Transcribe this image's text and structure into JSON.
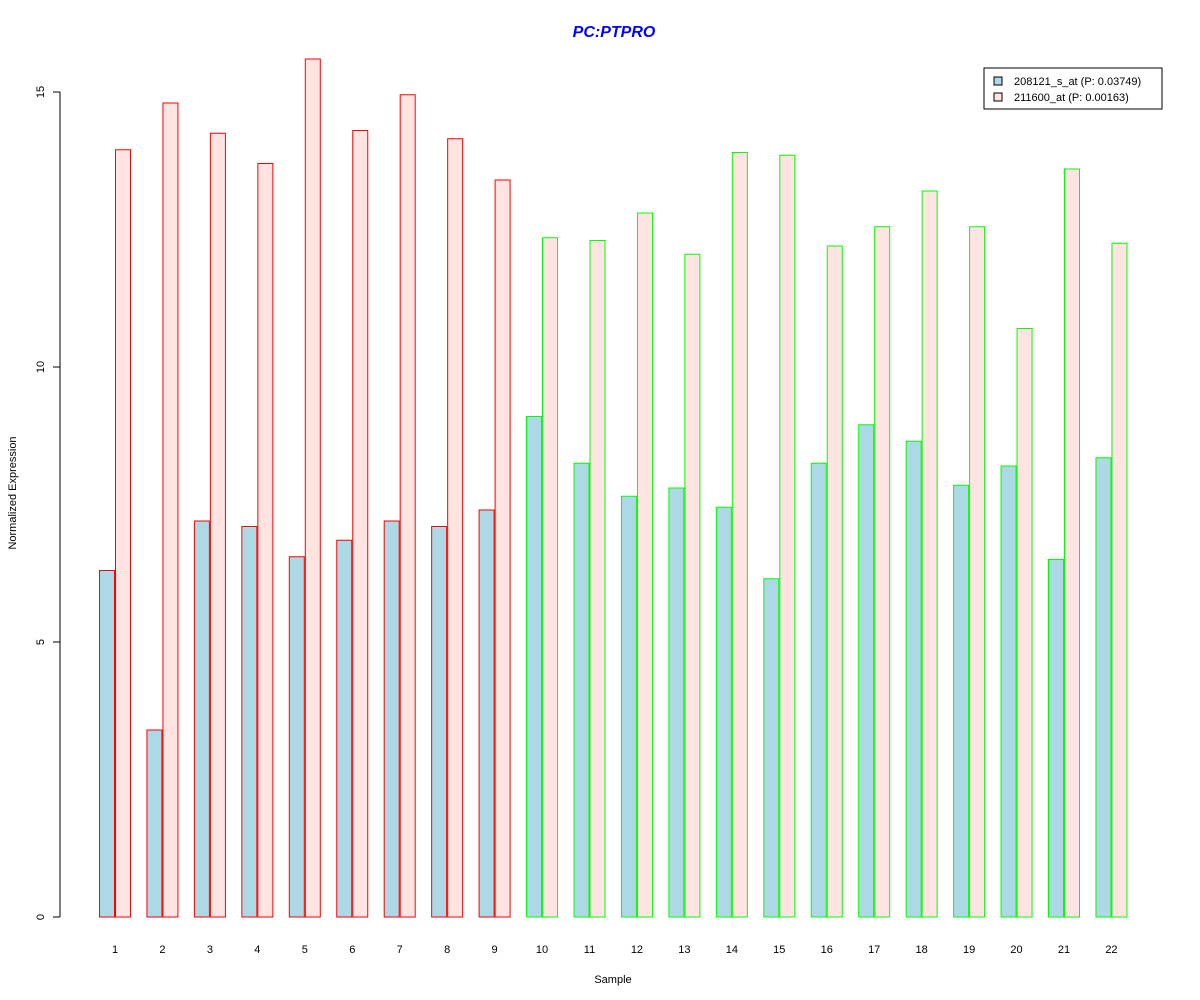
{
  "chart_data": {
    "type": "bar",
    "title": "PC:PTPRO",
    "xlabel": "Sample",
    "ylabel": "Normalized Expression",
    "ylim": [
      0,
      15.6
    ],
    "yticks": [
      "0",
      "5",
      "10",
      "15"
    ],
    "categories": [
      "1",
      "2",
      "3",
      "4",
      "5",
      "6",
      "7",
      "8",
      "9",
      "10",
      "11",
      "12",
      "13",
      "14",
      "15",
      "16",
      "17",
      "18",
      "19",
      "20",
      "21",
      "22"
    ],
    "series": [
      {
        "name": "208121_s_at (P: 0.03749)",
        "fill": "#add8e6",
        "values": [
          6.3,
          3.4,
          7.2,
          7.1,
          6.55,
          6.85,
          7.2,
          7.1,
          7.4,
          9.1,
          8.25,
          7.65,
          7.8,
          7.45,
          6.15,
          8.25,
          8.95,
          8.65,
          7.85,
          8.2,
          6.5,
          8.35
        ]
      },
      {
        "name": "211600_at (P: 0.00163)",
        "fill": "#ffe4e1",
        "values": [
          13.95,
          14.8,
          14.25,
          13.7,
          15.6,
          14.3,
          14.95,
          14.15,
          13.4,
          12.35,
          12.3,
          12.8,
          12.05,
          13.9,
          13.85,
          12.2,
          12.55,
          13.2,
          12.55,
          10.7,
          13.6,
          12.25
        ]
      }
    ],
    "group_border_colors": [
      "#ff0000",
      "#ff0000",
      "#ff0000",
      "#ff0000",
      "#ff0000",
      "#ff0000",
      "#ff0000",
      "#ff0000",
      "#ff0000",
      "#00ff00",
      "#00ff00",
      "#00ff00",
      "#00ff00",
      "#00ff00",
      "#00ff00",
      "#00ff00",
      "#00ff00",
      "#00ff00",
      "#00ff00",
      "#00ff00",
      "#00ff00",
      "#00ff00"
    ],
    "colors": {
      "title": "#0000ff",
      "axis": "#000000",
      "legend_border": "#000000",
      "legend_swatch_border": "#000000"
    },
    "legend_position": "top-right",
    "grid": false
  }
}
